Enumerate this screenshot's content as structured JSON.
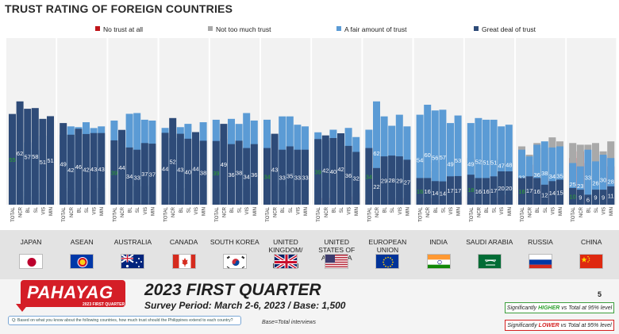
{
  "title": "TRUST RATING OF FOREIGN COUNTRIES",
  "legend": [
    {
      "label": "No trust at all",
      "color": "#c0151a"
    },
    {
      "label": "Not too much trust",
      "color": "#a9a9a9"
    },
    {
      "label": "A fair amount of trust",
      "color": "#5b9bd5"
    },
    {
      "label": "Great deal of trust",
      "color": "#2e4b78"
    }
  ],
  "chart_data": {
    "type": "bar",
    "stacked": true,
    "subgroups": [
      "TOTAL",
      "NCR",
      "BL",
      "SL",
      "VIS",
      "MIN"
    ],
    "series_names": [
      "No trust at all",
      "Not too much trust",
      "A fair amount of trust",
      "Great deal of trust"
    ],
    "series_colors": [
      "#c0151a",
      "#a9a9a9",
      "#5b9bd5",
      "#2e4b78"
    ],
    "ylim": [
      0,
      100
    ],
    "countries": [
      {
        "name": "JAPAN",
        "groups": [
          [
            1,
            8,
            37,
            55
          ],
          [
            1,
            8,
            29,
            62
          ],
          [
            0,
            5,
            37,
            57
          ],
          [
            0,
            9,
            33,
            58
          ],
          [
            0,
            7,
            41,
            51
          ],
          [
            0,
            8,
            37,
            51
          ]
        ]
      },
      {
        "name": "ASEAN",
        "groups": [
          [
            1,
            8,
            42,
            49
          ],
          [
            1,
            10,
            47,
            42
          ],
          [
            1,
            7,
            47,
            46
          ],
          [
            0,
            8,
            49,
            42
          ],
          [
            1,
            10,
            46,
            43
          ],
          [
            0,
            10,
            47,
            43
          ]
        ]
      },
      {
        "name": "AUSTRALIA",
        "groups": [
          [
            1,
            10,
            51,
            39
          ],
          [
            1,
            12,
            41,
            44
          ],
          [
            0,
            11,
            54,
            34
          ],
          [
            1,
            11,
            55,
            33
          ],
          [
            1,
            11,
            51,
            37
          ],
          [
            1,
            12,
            51,
            37
          ]
        ]
      },
      {
        "name": "CANADA",
        "groups": [
          [
            1,
            10,
            47,
            44
          ],
          [
            1,
            7,
            40,
            52
          ],
          [
            1,
            10,
            47,
            43
          ],
          [
            2,
            10,
            49,
            40
          ],
          [
            1,
            12,
            44,
            44
          ],
          [
            0,
            12,
            49,
            38
          ]
        ]
      },
      {
        "name": "SOUTH KOREA",
        "groups": [
          [
            1,
            10,
            52,
            39
          ],
          [
            1,
            11,
            40,
            49
          ],
          [
            1,
            11,
            51,
            36
          ],
          [
            2,
            11,
            48,
            38
          ],
          [
            1,
            10,
            55,
            34
          ],
          [
            1,
            12,
            50,
            36
          ]
        ]
      },
      {
        "name": "UNITED KINGDOM/ GREAT BRITAIN",
        "groups": [
          [
            2,
            13,
            51,
            34
          ],
          [
            2,
            14,
            42,
            43
          ],
          [
            2,
            12,
            53,
            33
          ],
          [
            1,
            11,
            53,
            35
          ],
          [
            1,
            18,
            48,
            33
          ],
          [
            2,
            18,
            47,
            33
          ]
        ]
      },
      {
        "name": "UNITED STATES OF AMERICA",
        "groups": [
          [
            4,
            13,
            43,
            39
          ],
          [
            4,
            16,
            39,
            42
          ],
          [
            4,
            11,
            45,
            40
          ],
          [
            4,
            14,
            38,
            42
          ],
          [
            5,
            14,
            47,
            36
          ],
          [
            7,
            21,
            41,
            32
          ]
        ]
      },
      {
        "name": "EUROPEAN UNION",
        "groups": [
          [
            3,
            18,
            45,
            34
          ],
          [
            2,
            14,
            62,
            22
          ],
          [
            3,
            15,
            53,
            29
          ],
          [
            2,
            20,
            45,
            28
          ],
          [
            4,
            13,
            54,
            29
          ],
          [
            4,
            22,
            47,
            27
          ]
        ]
      },
      {
        "name": "INDIA",
        "groups": [
          [
            4,
            26,
            54,
            16
          ],
          [
            4,
            20,
            60,
            16
          ],
          [
            4,
            25,
            56,
            14
          ],
          [
            3,
            26,
            57,
            14
          ],
          [
            5,
            29,
            49,
            17
          ],
          [
            5,
            24,
            53,
            17
          ]
        ]
      },
      {
        "name": "SAUDI ARABIA",
        "groups": [
          [
            5,
            28,
            49,
            18
          ],
          [
            4,
            28,
            52,
            16
          ],
          [
            6,
            27,
            51,
            16
          ],
          [
            4,
            28,
            51,
            17
          ],
          [
            6,
            27,
            47,
            20
          ],
          [
            6,
            26,
            48,
            20
          ]
        ]
      },
      {
        "name": "RUSSIA",
        "groups": [
          [
            16,
            35,
            33,
            16
          ],
          [
            24,
            30,
            29,
            17
          ],
          [
            11,
            37,
            36,
            16
          ],
          [
            16,
            34,
            38,
            12
          ],
          [
            11,
            40,
            34,
            14
          ],
          [
            12,
            38,
            35,
            15
          ]
        ]
      },
      {
        "name": "CHINA",
        "groups": [
          [
            28,
            37,
            25,
            10
          ],
          [
            32,
            36,
            23,
            9
          ],
          [
            25,
            36,
            33,
            6
          ],
          [
            28,
            37,
            26,
            9
          ],
          [
            29,
            32,
            30,
            9
          ],
          [
            23,
            38,
            28,
            11
          ]
        ]
      }
    ],
    "highlights_higher": [
      [
        0,
        0,
        3
      ],
      [
        0,
        0,
        4
      ],
      [
        0,
        2,
        3
      ],
      [
        0,
        4,
        3
      ],
      [
        0,
        5,
        3
      ],
      [
        0,
        6,
        3
      ],
      [
        0,
        7,
        3
      ],
      [
        0,
        8,
        3
      ],
      [
        0,
        9,
        3
      ],
      [
        0,
        10,
        3
      ],
      [
        0,
        11,
        3
      ],
      [
        0,
        11,
        4
      ],
      [
        0,
        12,
        3
      ],
      [
        0,
        13,
        3
      ]
    ],
    "highlights_lower": [
      [
        0,
        0,
        1
      ]
    ]
  },
  "flags": [
    "japan-flag",
    "asean-flag",
    "australia-flag",
    "canada-flag",
    "south-korea-flag",
    "uk-flag",
    "usa-flag",
    "eu-flag",
    "india-flag",
    "saudi-arabia-flag",
    "russia-flag",
    "china-flag"
  ],
  "footer": {
    "brand": "PAHAYAG",
    "brand_sub": "2023 FIRST QUARTER",
    "survey_title": "2023 FIRST QUARTER",
    "survey_period": "Survey Period: March 2-6, 2023 / Base: 1,500",
    "question": "Q: Based on what you know about the following countries, how much trust should the Philippines extend to each country?",
    "base_note": "Base=Total interviews",
    "page_number": "5",
    "sig_higher_pre": "Significantly ",
    "sig_higher_word": "HIGHER",
    "sig_higher_post": " vs Total at 95% level",
    "sig_lower_pre": "Significantly ",
    "sig_lower_word": "LOWER",
    "sig_lower_post": " vs Total at 95% level"
  }
}
